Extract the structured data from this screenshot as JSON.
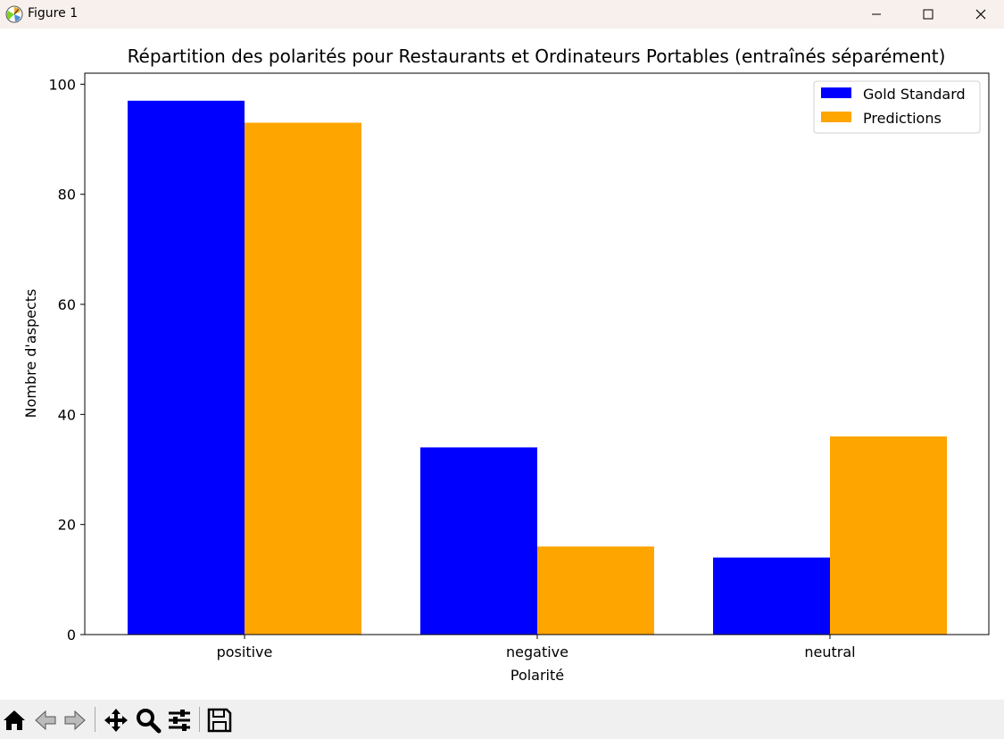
{
  "window": {
    "title": "Figure 1"
  },
  "toolbar": {
    "tools": [
      "home-icon",
      "back-icon",
      "forward-icon",
      "pan-icon",
      "zoom-icon",
      "configure-subplots-icon",
      "save-icon"
    ]
  },
  "colors": {
    "gold": "#0000ff",
    "pred": "#ffa500"
  },
  "chart_data": {
    "type": "bar",
    "title": "Répartition des polarités pour Restaurants et Ordinateurs Portables (entraînés séparément)",
    "xlabel": "Polarité",
    "ylabel": "Nombre d'aspects",
    "categories": [
      "positive",
      "negative",
      "neutral"
    ],
    "series": [
      {
        "name": "Gold Standard",
        "values": [
          97,
          34,
          14
        ],
        "color": "#0000ff"
      },
      {
        "name": "Predictions",
        "values": [
          93,
          16,
          36
        ],
        "color": "#ffa500"
      }
    ],
    "ylim": [
      0,
      102
    ],
    "yticks": [
      0,
      20,
      40,
      60,
      80,
      100
    ],
    "grid": false,
    "legend": "top-right"
  }
}
